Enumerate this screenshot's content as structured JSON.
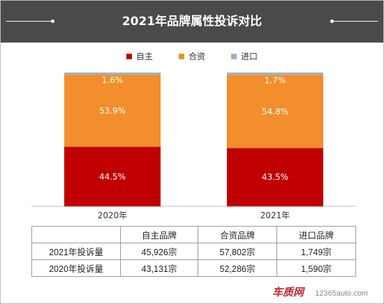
{
  "header": {
    "title": "2021年品牌属性投诉对比"
  },
  "colors": {
    "header_bg": "#4a4a4a",
    "domestic": "#c00000",
    "joint": "#f28e2b",
    "import": "#9cb3c9"
  },
  "chart_data": {
    "type": "bar",
    "stacked": true,
    "categories": [
      "2020年",
      "2021年"
    ],
    "series": [
      {
        "name": "自主",
        "color": "#c00000",
        "values": [
          44.5,
          43.5
        ],
        "labels": [
          "44.5%",
          "43.5%"
        ]
      },
      {
        "name": "合资",
        "color": "#f28e2b",
        "values": [
          53.9,
          54.8
        ],
        "labels": [
          "53.9%",
          "54.8%"
        ]
      },
      {
        "name": "进口",
        "color": "#9cb3c9",
        "values": [
          1.6,
          1.7
        ],
        "labels": [
          "1.6%",
          "1.7%"
        ]
      }
    ],
    "ylim": [
      0,
      100
    ],
    "legend_position": "top",
    "grid": false
  },
  "table": {
    "headers": [
      "",
      "自主品牌",
      "合资品牌",
      "进口品牌"
    ],
    "rows": [
      {
        "label": "2021年投诉量",
        "cells": [
          "45,926宗",
          "57,802宗",
          "1,749宗"
        ]
      },
      {
        "label": "2020年投诉量",
        "cells": [
          "43,131宗",
          "52,286宗",
          "1,590宗"
        ]
      }
    ]
  },
  "watermark": {
    "logo": "车质网",
    "url": "12365auto.com"
  }
}
